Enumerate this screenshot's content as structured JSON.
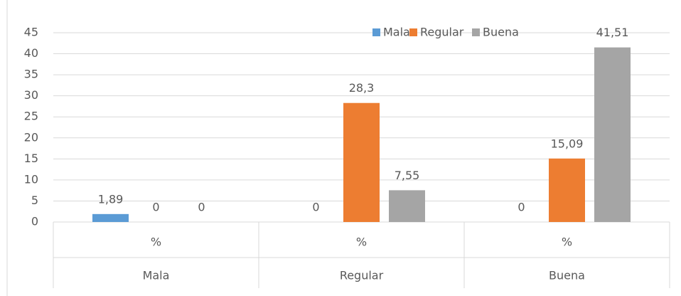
{
  "chart_data": {
    "type": "bar",
    "categories": [
      "Mala",
      "Regular",
      "Buena"
    ],
    "subcategories": [
      "%",
      "%",
      "%"
    ],
    "series": [
      {
        "name": "Mala",
        "color": "#5b9bd5",
        "values": [
          1.89,
          0,
          0
        ],
        "value_labels": [
          "1,89",
          "0",
          "0"
        ]
      },
      {
        "name": "Regular",
        "color": "#ed7d31",
        "values": [
          0,
          28.3,
          15.09
        ],
        "value_labels": [
          "0",
          "28,3",
          "15,09"
        ]
      },
      {
        "name": "Buena",
        "color": "#a5a5a5",
        "values": [
          0,
          7.55,
          41.51
        ],
        "value_labels": [
          "0",
          "7,55",
          "41,51"
        ]
      }
    ],
    "ylim": [
      0,
      45
    ],
    "yticks": [
      0,
      5,
      10,
      15,
      20,
      25,
      30,
      35,
      40,
      45
    ],
    "grid": true,
    "legend": "top-right"
  }
}
